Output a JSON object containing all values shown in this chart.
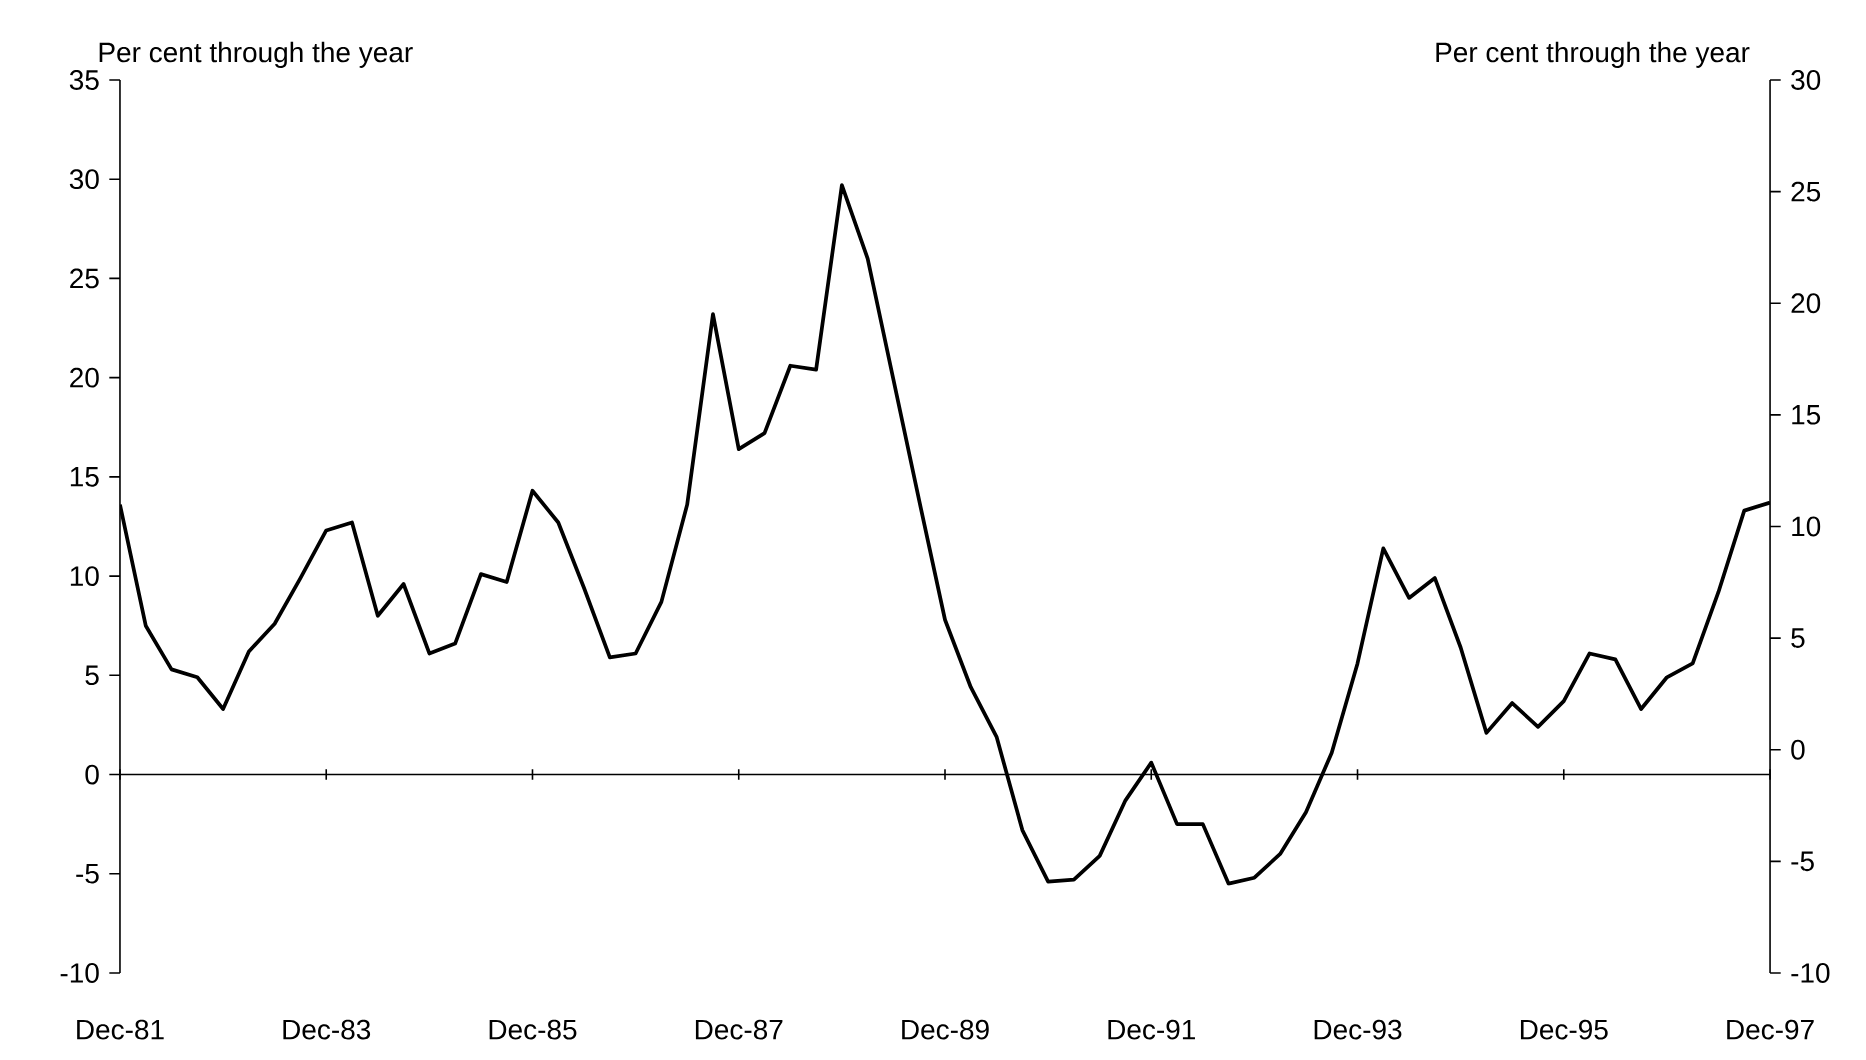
{
  "chart_data": {
    "type": "line",
    "ylabel": "Per cent through the year",
    "y2label": "Per cent through the year",
    "categories": [
      "Dec-81",
      null,
      null,
      null,
      null,
      null,
      null,
      null,
      "Dec-83",
      null,
      null,
      null,
      null,
      null,
      null,
      null,
      "Dec-85",
      null,
      null,
      null,
      null,
      null,
      null,
      null,
      "Dec-87",
      null,
      null,
      null,
      null,
      null,
      null,
      null,
      "Dec-89",
      null,
      null,
      null,
      null,
      null,
      null,
      null,
      "Dec-91",
      null,
      null,
      null,
      null,
      null,
      null,
      null,
      "Dec-93",
      null,
      null,
      null,
      null,
      null,
      null,
      null,
      "Dec-95",
      null,
      null,
      null,
      null,
      null,
      null,
      null,
      "Dec-97"
    ],
    "series": [
      {
        "color": "#000000",
        "values": [
          13.6,
          7.5,
          5.3,
          4.9,
          3.3,
          6.2,
          7.6,
          9.9,
          12.3,
          12.7,
          8.0,
          9.6,
          6.1,
          6.6,
          10.1,
          9.7,
          14.3,
          12.7,
          9.4,
          5.9,
          6.1,
          8.7,
          13.6,
          23.2,
          16.4,
          17.2,
          20.6,
          20.4,
          29.7,
          26.0,
          19.9,
          13.8,
          7.8,
          4.4,
          1.9,
          -2.8,
          -5.4,
          -5.3,
          -4.1,
          -1.3,
          0.6,
          -2.5,
          -2.5,
          -5.5,
          -5.2,
          -4.0,
          -1.9,
          1.1,
          5.6,
          11.4,
          8.9,
          9.9,
          6.4,
          2.1,
          3.6,
          2.4,
          3.7,
          6.1,
          5.8,
          3.3,
          4.9,
          5.6,
          9.2,
          13.3,
          13.7
        ]
      }
    ],
    "ylim": [
      -10,
      35
    ],
    "yticks": [
      -10,
      -5,
      0,
      5,
      10,
      15,
      20,
      25,
      30,
      35
    ],
    "y2lim": [
      -10,
      30
    ],
    "y2ticks": [
      -10,
      -5,
      0,
      5,
      10,
      15,
      20,
      25,
      30
    ],
    "marker": "none",
    "line_style": "solid"
  }
}
